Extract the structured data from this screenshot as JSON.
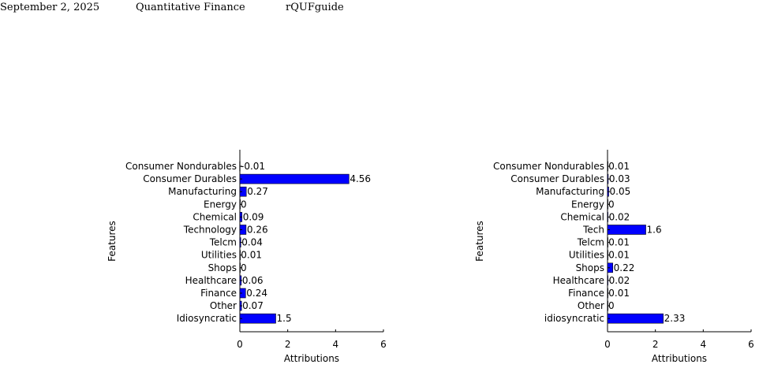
{
  "header": {
    "date": "September 2, 2025",
    "journal": "Quantitative Finance",
    "guide": "rQUFguide"
  },
  "colors": {
    "bar": "#0000ff",
    "axis": "#000000"
  },
  "chart_data": [
    {
      "type": "bar",
      "orientation": "horizontal",
      "categories": [
        "Consumer Nondurables",
        "Consumer Durables",
        "Manufacturing",
        "Energy",
        "Chemical",
        "Technology",
        "Telcm",
        "Utilities",
        "Shops",
        "Healthcare",
        "Finance",
        "Other",
        "Idiosyncratic"
      ],
      "values": [
        -0.01,
        4.56,
        0.27,
        0,
        0.09,
        0.26,
        0.04,
        0.01,
        0,
        0.06,
        0.24,
        0.07,
        1.5
      ],
      "labels": [
        "-0.01",
        "4.56",
        "0.27",
        "0",
        "0.09",
        "0.26",
        "0.04",
        "0.01",
        "0",
        "0.06",
        "0.24",
        "0.07",
        "1.5"
      ],
      "xlabel": "Attributions",
      "ylabel": "Features",
      "xlim": [
        0,
        6
      ],
      "xticks": [
        0,
        2,
        4,
        6
      ],
      "grid": false
    },
    {
      "type": "bar",
      "orientation": "horizontal",
      "categories": [
        "Consumer Nondurables",
        "Consumer Durables",
        "Manufacturing",
        "Energy",
        "Chemical",
        "Tech",
        "Telcm",
        "Utilities",
        "Shops",
        "Healthcare",
        "Finance",
        "Other",
        "idiosyncratic"
      ],
      "values": [
        0.01,
        0.03,
        0.05,
        0,
        0.02,
        1.6,
        0.01,
        0.01,
        0.22,
        0.02,
        0.01,
        0,
        2.33
      ],
      "labels": [
        "0.01",
        "0.03",
        "0.05",
        "0",
        "0.02",
        "1.6",
        "0.01",
        "0.01",
        "0.22",
        "0.02",
        "0.01",
        "0",
        "2.33"
      ],
      "xlabel": "Attributions",
      "ylabel": "Features",
      "xlim": [
        0,
        6
      ],
      "xticks": [
        0,
        2,
        4,
        6
      ],
      "grid": false
    }
  ]
}
